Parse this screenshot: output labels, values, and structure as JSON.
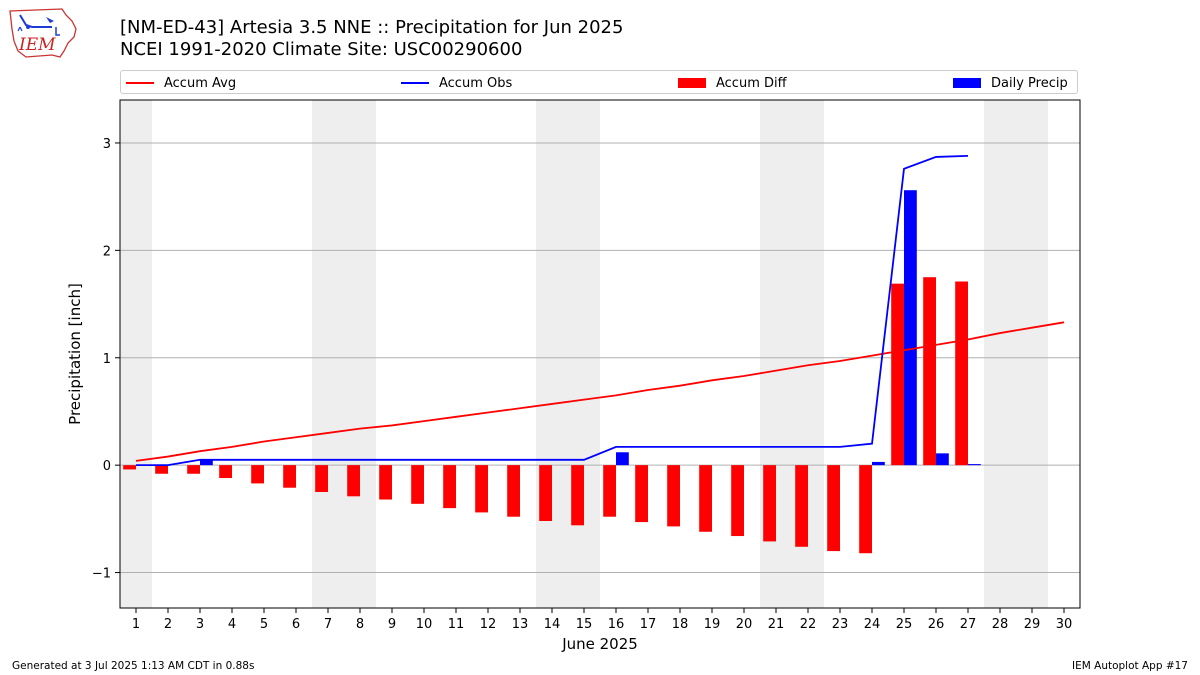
{
  "header": {
    "title_line1": "[NM-ED-43] Artesia 3.5 NNE :: Precipitation for Jun 2025",
    "title_line2": "NCEI 1991-2020 Climate Site: USC00290600"
  },
  "logo": {
    "text": "IEM"
  },
  "legend": {
    "items": [
      {
        "label": "Accum Avg",
        "kind": "line",
        "color": "#ff0000"
      },
      {
        "label": "Accum Obs",
        "kind": "line",
        "color": "#0000ff"
      },
      {
        "label": "Accum Diff",
        "kind": "patch",
        "color": "#ff0000"
      },
      {
        "label": "Daily Precip",
        "kind": "patch",
        "color": "#0000ff"
      }
    ]
  },
  "footer": {
    "left": "Generated at 3 Jul 2025 1:13 AM CDT in 0.88s",
    "right": "IEM Autoplot App #17"
  },
  "chart_data": {
    "type": "bar",
    "xlabel": "June 2025",
    "ylabel": "Precipitation [inch]",
    "xlim": [
      0.5,
      30.5
    ],
    "ylim": [
      -1.33,
      3.4
    ],
    "yticks": [
      -1,
      0,
      1,
      2,
      3
    ],
    "ytick_labels": [
      "−1",
      "0",
      "1",
      "2",
      "3"
    ],
    "grid": "y",
    "legend_position": "top",
    "weekend_shading": [
      [
        0.5,
        1.5
      ],
      [
        6.5,
        8.5
      ],
      [
        13.5,
        15.5
      ],
      [
        20.5,
        22.5
      ],
      [
        27.5,
        29.5
      ]
    ],
    "days": [
      1,
      2,
      3,
      4,
      5,
      6,
      7,
      8,
      9,
      10,
      11,
      12,
      13,
      14,
      15,
      16,
      17,
      18,
      19,
      20,
      21,
      22,
      23,
      24,
      25,
      26,
      27,
      28,
      29,
      30
    ],
    "series": [
      {
        "name": "Accum Avg",
        "kind": "line",
        "color": "#ff0000",
        "values": [
          0.04,
          0.08,
          0.13,
          0.17,
          0.22,
          0.26,
          0.3,
          0.34,
          0.37,
          0.41,
          0.45,
          0.49,
          0.53,
          0.57,
          0.61,
          0.65,
          0.7,
          0.74,
          0.79,
          0.83,
          0.88,
          0.93,
          0.97,
          1.02,
          1.07,
          1.12,
          1.17,
          1.23,
          1.28,
          1.33
        ]
      },
      {
        "name": "Accum Obs",
        "kind": "line",
        "color": "#0000ff",
        "values": [
          0.0,
          0.0,
          0.05,
          0.05,
          0.05,
          0.05,
          0.05,
          0.05,
          0.05,
          0.05,
          0.05,
          0.05,
          0.05,
          0.05,
          0.05,
          0.17,
          0.17,
          0.17,
          0.17,
          0.17,
          0.17,
          0.17,
          0.17,
          0.2,
          2.76,
          2.87,
          2.88
        ]
      },
      {
        "name": "Accum Diff",
        "kind": "bar",
        "color": "#ff0000",
        "values": [
          -0.04,
          -0.08,
          -0.08,
          -0.12,
          -0.17,
          -0.21,
          -0.25,
          -0.29,
          -0.32,
          -0.36,
          -0.4,
          -0.44,
          -0.48,
          -0.52,
          -0.56,
          -0.48,
          -0.53,
          -0.57,
          -0.62,
          -0.66,
          -0.71,
          -0.76,
          -0.8,
          -0.82,
          1.69,
          1.75,
          1.71
        ]
      },
      {
        "name": "Daily Precip",
        "kind": "bar",
        "color": "#0000ff",
        "values": [
          0.0,
          0.0,
          0.05,
          0.0,
          0.0,
          0.0,
          0.0,
          0.0,
          0.0,
          0.0,
          0.0,
          0.0,
          0.0,
          0.0,
          0.0,
          0.12,
          0.0,
          0.0,
          0.0,
          0.0,
          0.0,
          0.0,
          0.0,
          0.03,
          2.56,
          0.11,
          0.01
        ]
      }
    ]
  }
}
